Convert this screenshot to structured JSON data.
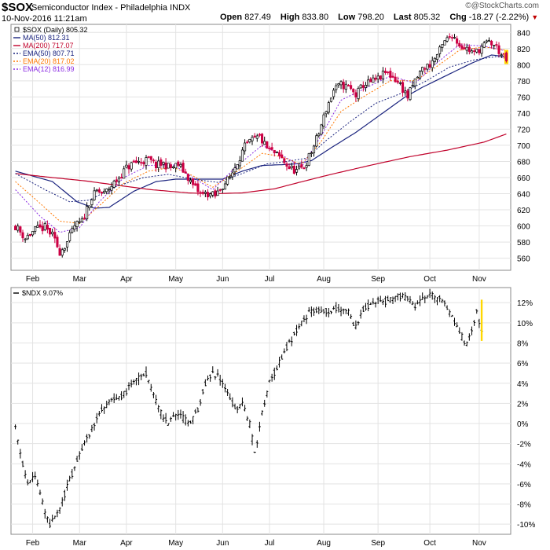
{
  "header": {
    "symbol": "$SOX",
    "index_name": "Semiconductor Index - Philadelphia",
    "exchange": "INDX",
    "datetime": "10-Nov-2016 11:21am",
    "open_label": "Open",
    "open": "827.49",
    "high_label": "High",
    "high": "833.80",
    "low_label": "Low",
    "low": "798.20",
    "last_label": "Last",
    "last": "805.32",
    "chg_label": "Chg",
    "chg": "-18.27 (-2.22%)",
    "credit": "@StockCharts.com"
  },
  "colors": {
    "up": "#000000",
    "down": "#cc0044",
    "ma50": "#1a237e",
    "ma200": "#c0002a",
    "ema50": "#1a237e",
    "ema20": "#ff7700",
    "ema12": "#8a2be2",
    "today_highlight": "#ffd700"
  },
  "chart_data": [
    {
      "type": "candlestick",
      "title": "$SOX (Daily) 805.32",
      "categories": [
        "Feb",
        "Mar",
        "Apr",
        "May",
        "Jun",
        "Jul",
        "Aug",
        "Sep",
        "Oct",
        "Nov"
      ],
      "ylim": [
        545,
        850
      ],
      "yticks": [
        560,
        580,
        600,
        620,
        640,
        660,
        680,
        700,
        720,
        740,
        760,
        780,
        800,
        820,
        840
      ],
      "ytick_labels": [
        "560",
        "580",
        "600",
        "620",
        "640",
        "660",
        "680",
        "700",
        "720",
        "740",
        "760",
        "780",
        "800",
        "820",
        "840"
      ],
      "grid": true,
      "legend_position": "top-left",
      "legend": [
        "$SOX (Daily) 805.32",
        "MA(50) 812.31",
        "MA(200) 717.07",
        "EMA(50) 807.71",
        "EMA(20) 817.02",
        "EMA(12) 816.99"
      ],
      "price_path": [
        [
          0,
          600
        ],
        [
          4,
          585
        ],
        [
          8,
          595
        ],
        [
          12,
          598
        ],
        [
          15,
          588
        ],
        [
          18,
          568
        ],
        [
          21,
          580
        ],
        [
          24,
          600
        ],
        [
          27,
          605
        ],
        [
          30,
          630
        ],
        [
          33,
          643
        ],
        [
          36,
          640
        ],
        [
          39,
          650
        ],
        [
          42,
          660
        ],
        [
          45,
          672
        ],
        [
          48,
          678
        ],
        [
          51,
          680
        ],
        [
          54,
          682
        ],
        [
          57,
          675
        ],
        [
          60,
          677
        ],
        [
          63,
          672
        ],
        [
          66,
          676
        ],
        [
          69,
          665
        ],
        [
          72,
          650
        ],
        [
          75,
          640
        ],
        [
          78,
          640
        ],
        [
          81,
          637
        ],
        [
          84,
          650
        ],
        [
          87,
          660
        ],
        [
          90,
          680
        ],
        [
          93,
          698
        ],
        [
          96,
          706
        ],
        [
          99,
          710
        ],
        [
          102,
          696
        ],
        [
          105,
          690
        ],
        [
          108,
          683
        ],
        [
          111,
          672
        ],
        [
          114,
          668
        ],
        [
          117,
          673
        ],
        [
          120,
          692
        ],
        [
          123,
          715
        ],
        [
          126,
          745
        ],
        [
          129,
          768
        ],
        [
          132,
          775
        ],
        [
          135,
          772
        ],
        [
          138,
          762
        ],
        [
          141,
          775
        ],
        [
          144,
          778
        ],
        [
          147,
          782
        ],
        [
          150,
          790
        ],
        [
          153,
          785
        ],
        [
          156,
          775
        ],
        [
          159,
          760
        ],
        [
          162,
          780
        ],
        [
          165,
          795
        ],
        [
          168,
          800
        ],
        [
          171,
          812
        ],
        [
          174,
          828
        ],
        [
          177,
          838
        ],
        [
          180,
          825
        ],
        [
          183,
          820
        ],
        [
          186,
          814
        ],
        [
          189,
          822
        ],
        [
          192,
          828
        ],
        [
          195,
          822
        ],
        [
          197,
          812
        ],
        [
          199,
          805
        ]
      ],
      "series": [
        {
          "name": "MA(50) 812.31",
          "style": "solid",
          "path": [
            [
              0,
              668
            ],
            [
              15,
              655
            ],
            [
              25,
              630
            ],
            [
              32,
              622
            ],
            [
              38,
              623
            ],
            [
              48,
              643
            ],
            [
              57,
              655
            ],
            [
              65,
              658
            ],
            [
              75,
              658
            ],
            [
              84,
              658
            ],
            [
              92,
              668
            ],
            [
              100,
              675
            ],
            [
              108,
              676
            ],
            [
              114,
              677
            ],
            [
              120,
              681
            ],
            [
              128,
              697
            ],
            [
              138,
              716
            ],
            [
              148,
              738
            ],
            [
              158,
              760
            ],
            [
              165,
              772
            ],
            [
              175,
              787
            ],
            [
              185,
              802
            ],
            [
              193,
              812
            ],
            [
              199,
              810
            ]
          ]
        },
        {
          "name": "MA(200) 717.07",
          "style": "solid",
          "path": [
            [
              0,
              665
            ],
            [
              15,
              660
            ],
            [
              28,
              656
            ],
            [
              40,
              651
            ],
            [
              55,
              645
            ],
            [
              70,
              641
            ],
            [
              80,
              640
            ],
            [
              92,
              641
            ],
            [
              105,
              646
            ],
            [
              115,
              654
            ],
            [
              128,
              664
            ],
            [
              145,
              676
            ],
            [
              160,
              686
            ],
            [
              175,
              694
            ],
            [
              190,
              704
            ],
            [
              199,
              714
            ]
          ]
        },
        {
          "name": "EMA(50) 807.71",
          "style": "dotted",
          "path": [
            [
              0,
              665
            ],
            [
              12,
              645
            ],
            [
              22,
              630
            ],
            [
              30,
              632
            ],
            [
              40,
              648
            ],
            [
              52,
              660
            ],
            [
              62,
              664
            ],
            [
              72,
              658
            ],
            [
              82,
              654
            ],
            [
              92,
              665
            ],
            [
              102,
              677
            ],
            [
              110,
              680
            ],
            [
              118,
              684
            ],
            [
              126,
              706
            ],
            [
              136,
              730
            ],
            [
              146,
              752
            ],
            [
              156,
              764
            ],
            [
              166,
              779
            ],
            [
              176,
              797
            ],
            [
              186,
              806
            ],
            [
              195,
              810
            ],
            [
              199,
              808
            ]
          ]
        },
        {
          "name": "EMA(20) 817.02",
          "style": "dotted",
          "path": [
            [
              0,
              655
            ],
            [
              10,
              628
            ],
            [
              18,
              606
            ],
            [
              26,
              603
            ],
            [
              34,
              625
            ],
            [
              44,
              653
            ],
            [
              54,
              668
            ],
            [
              64,
              673
            ],
            [
              72,
              662
            ],
            [
              80,
              648
            ],
            [
              90,
              668
            ],
            [
              100,
              690
            ],
            [
              108,
              686
            ],
            [
              116,
              676
            ],
            [
              124,
              705
            ],
            [
              132,
              742
            ],
            [
              142,
              762
            ],
            [
              152,
              780
            ],
            [
              162,
              780
            ],
            [
              170,
              796
            ],
            [
              180,
              818
            ],
            [
              190,
              822
            ],
            [
              199,
              818
            ]
          ]
        },
        {
          "name": "EMA(12) 816.99",
          "style": "dotted",
          "path": [
            [
              0,
              645
            ],
            [
              10,
              612
            ],
            [
              18,
              592
            ],
            [
              26,
              598
            ],
            [
              34,
              630
            ],
            [
              44,
              660
            ],
            [
              54,
              675
            ],
            [
              64,
              676
            ],
            [
              72,
              660
            ],
            [
              80,
              645
            ],
            [
              90,
              675
            ],
            [
              100,
              700
            ],
            [
              108,
              688
            ],
            [
              116,
              673
            ],
            [
              124,
              712
            ],
            [
              132,
              756
            ],
            [
              142,
              771
            ],
            [
              152,
              786
            ],
            [
              162,
              777
            ],
            [
              170,
              800
            ],
            [
              180,
              825
            ],
            [
              190,
              823
            ],
            [
              199,
              817
            ]
          ]
        }
      ]
    },
    {
      "type": "line",
      "title": "$NDX 9.07%",
      "categories": [
        "Feb",
        "Mar",
        "Apr",
        "May",
        "Jun",
        "Jul",
        "Aug",
        "Sep",
        "Oct",
        "Nov"
      ],
      "ylim": [
        -11,
        13.5
      ],
      "yticks": [
        -10,
        -8,
        -6,
        -4,
        -2,
        0,
        2,
        4,
        6,
        8,
        10,
        12
      ],
      "ytick_labels": [
        "-10%",
        "-8%",
        "-6%",
        "-4%",
        "-2%",
        "0%",
        "2%",
        "4%",
        "6%",
        "8%",
        "10%",
        "12%"
      ],
      "grid": true,
      "legend_position": "top-left",
      "legend": [
        "$NDX 9.07%"
      ],
      "series": [
        {
          "name": "$NDX 9.07%",
          "path": [
            [
              0,
              0
            ],
            [
              2,
              -3
            ],
            [
              5,
              -6
            ],
            [
              8,
              -5
            ],
            [
              11,
              -8
            ],
            [
              14,
              -10
            ],
            [
              17,
              -9
            ],
            [
              20,
              -7
            ],
            [
              23,
              -5
            ],
            [
              26,
              -3
            ],
            [
              30,
              -1
            ],
            [
              34,
              1
            ],
            [
              38,
              2
            ],
            [
              42,
              2.5
            ],
            [
              46,
              3.5
            ],
            [
              50,
              4.5
            ],
            [
              53,
              5
            ],
            [
              56,
              3
            ],
            [
              59,
              1
            ],
            [
              62,
              0
            ],
            [
              65,
              1
            ],
            [
              68,
              0.5
            ],
            [
              71,
              0
            ],
            [
              74,
              1.5
            ],
            [
              77,
              4
            ],
            [
              80,
              5
            ],
            [
              83,
              4.5
            ],
            [
              86,
              3
            ],
            [
              89,
              1.5
            ],
            [
              92,
              2
            ],
            [
              95,
              0
            ],
            [
              97,
              -3
            ],
            [
              100,
              1
            ],
            [
              103,
              4
            ],
            [
              107,
              6
            ],
            [
              111,
              8
            ],
            [
              115,
              9.5
            ],
            [
              119,
              11
            ],
            [
              123,
              11.3
            ],
            [
              127,
              11.2
            ],
            [
              131,
              11.5
            ],
            [
              135,
              11.0
            ],
            [
              138,
              9.5
            ],
            [
              141,
              11.2
            ],
            [
              145,
              12.2
            ],
            [
              149,
              12
            ],
            [
              153,
              12.5
            ],
            [
              156,
              12.7
            ],
            [
              159,
              12.3
            ],
            [
              162,
              11.4
            ],
            [
              165,
              12.3
            ],
            [
              168,
              12.8
            ],
            [
              171,
              12.4
            ],
            [
              174,
              12.2
            ],
            [
              177,
              10.5
            ],
            [
              180,
              9
            ],
            [
              183,
              7.8
            ],
            [
              185,
              9.5
            ],
            [
              187,
              11
            ],
            [
              189,
              9.07
            ]
          ]
        }
      ]
    }
  ]
}
